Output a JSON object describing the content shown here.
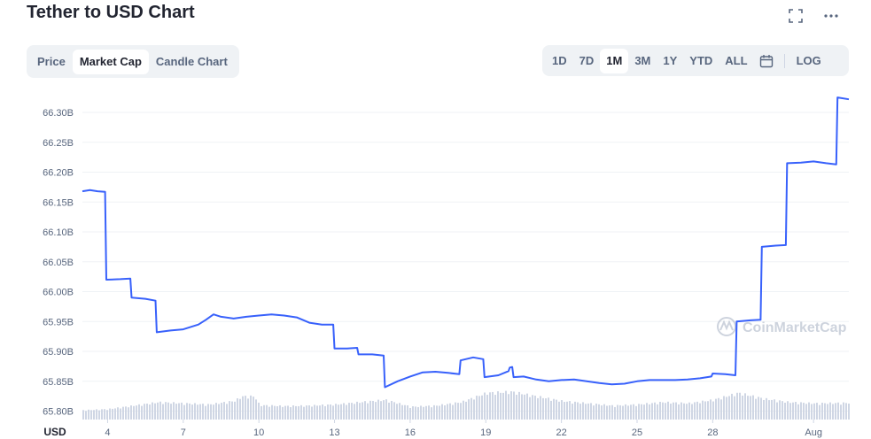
{
  "page": {
    "title": "Tether to USD Chart"
  },
  "icons": {
    "fullscreen": "fullscreen-icon",
    "more": "more-dots-icon",
    "calendar": "calendar-icon"
  },
  "tabs_left": [
    {
      "label": "Price",
      "active": false
    },
    {
      "label": "Market Cap",
      "active": true
    },
    {
      "label": "Candle Chart",
      "active": false
    }
  ],
  "tabs_right": [
    {
      "label": "1D",
      "active": false
    },
    {
      "label": "7D",
      "active": false
    },
    {
      "label": "1M",
      "active": true
    },
    {
      "label": "3M",
      "active": false
    },
    {
      "label": "1Y",
      "active": false
    },
    {
      "label": "YTD",
      "active": false
    },
    {
      "label": "ALL",
      "active": false
    }
  ],
  "log_label": "LOG",
  "watermark": "CoinMarketCap",
  "colors": {
    "line": "#3861fb",
    "volume": "#cfd6e4",
    "grid": "#eff2f5",
    "axis_text": "#58667e"
  },
  "chart_data": {
    "type": "line",
    "title": "Tether to USD Chart",
    "x_currency_label": "USD",
    "y_tick_labels": [
      "66.30B",
      "66.25B",
      "66.20B",
      "66.15B",
      "66.10B",
      "66.05B",
      "66.00B",
      "65.95B",
      "65.90B",
      "65.85B",
      "65.80B"
    ],
    "y_ticks": [
      66.3,
      66.25,
      66.2,
      66.15,
      66.1,
      66.05,
      66.0,
      65.95,
      65.9,
      65.85,
      65.8
    ],
    "ylim": [
      65.786,
      66.34
    ],
    "xlim": [
      3.0,
      33.4
    ],
    "x_ticks": [
      {
        "value": 4,
        "label": "4"
      },
      {
        "value": 7,
        "label": "7"
      },
      {
        "value": 10,
        "label": "10"
      },
      {
        "value": 13,
        "label": "13"
      },
      {
        "value": 16,
        "label": "16"
      },
      {
        "value": 19,
        "label": "19"
      },
      {
        "value": 22,
        "label": "22"
      },
      {
        "value": 25,
        "label": "25"
      },
      {
        "value": 28,
        "label": "28"
      },
      {
        "value": 32,
        "label": "Aug"
      }
    ],
    "grid": true,
    "series": [
      {
        "unit": "B",
        "points": [
          [
            3.0,
            66.168
          ],
          [
            3.3,
            66.17
          ],
          [
            3.6,
            66.168
          ],
          [
            3.9,
            66.167
          ],
          [
            3.95,
            66.02
          ],
          [
            4.5,
            66.021
          ],
          [
            4.9,
            66.022
          ],
          [
            4.95,
            65.99
          ],
          [
            5.5,
            65.988
          ],
          [
            5.9,
            65.985
          ],
          [
            5.95,
            65.932
          ],
          [
            6.5,
            65.935
          ],
          [
            7.0,
            65.937
          ],
          [
            7.6,
            65.945
          ],
          [
            7.9,
            65.953
          ],
          [
            8.2,
            65.962
          ],
          [
            8.5,
            65.958
          ],
          [
            9.0,
            65.955
          ],
          [
            9.5,
            65.958
          ],
          [
            10.0,
            65.96
          ],
          [
            10.5,
            65.962
          ],
          [
            11.0,
            65.96
          ],
          [
            11.5,
            65.957
          ],
          [
            12.0,
            65.948
          ],
          [
            12.5,
            65.945
          ],
          [
            12.95,
            65.945
          ],
          [
            13.0,
            65.905
          ],
          [
            13.5,
            65.905
          ],
          [
            13.9,
            65.906
          ],
          [
            13.95,
            65.895
          ],
          [
            14.5,
            65.895
          ],
          [
            14.95,
            65.893
          ],
          [
            15.0,
            65.84
          ],
          [
            15.5,
            65.85
          ],
          [
            16.0,
            65.858
          ],
          [
            16.5,
            65.865
          ],
          [
            17.0,
            65.866
          ],
          [
            17.5,
            65.864
          ],
          [
            17.95,
            65.862
          ],
          [
            18.0,
            65.885
          ],
          [
            18.5,
            65.89
          ],
          [
            18.9,
            65.887
          ],
          [
            18.95,
            65.857
          ],
          [
            19.5,
            65.86
          ],
          [
            19.9,
            65.867
          ],
          [
            19.95,
            65.873
          ],
          [
            20.05,
            65.874
          ],
          [
            20.1,
            65.857
          ],
          [
            20.5,
            65.858
          ],
          [
            21.0,
            65.853
          ],
          [
            21.5,
            65.85
          ],
          [
            22.0,
            65.852
          ],
          [
            22.5,
            65.853
          ],
          [
            23.0,
            65.85
          ],
          [
            23.5,
            65.847
          ],
          [
            24.0,
            65.845
          ],
          [
            24.5,
            65.846
          ],
          [
            25.0,
            65.85
          ],
          [
            25.5,
            65.852
          ],
          [
            26.0,
            65.852
          ],
          [
            26.5,
            65.852
          ],
          [
            27.0,
            65.853
          ],
          [
            27.5,
            65.855
          ],
          [
            27.95,
            65.858
          ],
          [
            28.0,
            65.863
          ],
          [
            28.5,
            65.862
          ],
          [
            28.9,
            65.86
          ],
          [
            28.95,
            65.95
          ],
          [
            29.5,
            65.952
          ],
          [
            29.9,
            65.953
          ],
          [
            29.95,
            66.075
          ],
          [
            30.5,
            66.077
          ],
          [
            30.9,
            66.078
          ],
          [
            30.95,
            66.215
          ],
          [
            31.5,
            66.216
          ],
          [
            32.0,
            66.218
          ],
          [
            32.5,
            66.215
          ],
          [
            32.9,
            66.213
          ],
          [
            32.95,
            66.325
          ],
          [
            33.4,
            66.322
          ]
        ]
      }
    ],
    "volume_profile": [
      {
        "x": 3.0,
        "h": 0.4
      },
      {
        "x": 4.0,
        "h": 0.45
      },
      {
        "x": 5.0,
        "h": 0.6
      },
      {
        "x": 6.0,
        "h": 0.75
      },
      {
        "x": 7.0,
        "h": 0.7
      },
      {
        "x": 8.0,
        "h": 0.65
      },
      {
        "x": 9.0,
        "h": 0.8
      },
      {
        "x": 9.3,
        "h": 1.0
      },
      {
        "x": 9.8,
        "h": 1.0
      },
      {
        "x": 10.0,
        "h": 0.62
      },
      {
        "x": 11.0,
        "h": 0.58
      },
      {
        "x": 12.0,
        "h": 0.6
      },
      {
        "x": 13.0,
        "h": 0.65
      },
      {
        "x": 14.0,
        "h": 0.75
      },
      {
        "x": 15.0,
        "h": 0.85
      },
      {
        "x": 16.0,
        "h": 0.55
      },
      {
        "x": 17.0,
        "h": 0.6
      },
      {
        "x": 18.0,
        "h": 0.75
      },
      {
        "x": 19.0,
        "h": 1.15
      },
      {
        "x": 20.0,
        "h": 1.2
      },
      {
        "x": 21.0,
        "h": 1.0
      },
      {
        "x": 22.0,
        "h": 0.8
      },
      {
        "x": 23.0,
        "h": 0.7
      },
      {
        "x": 24.0,
        "h": 0.6
      },
      {
        "x": 25.0,
        "h": 0.65
      },
      {
        "x": 26.0,
        "h": 0.75
      },
      {
        "x": 27.0,
        "h": 0.7
      },
      {
        "x": 28.0,
        "h": 0.85
      },
      {
        "x": 29.0,
        "h": 1.15
      },
      {
        "x": 30.0,
        "h": 0.9
      },
      {
        "x": 31.0,
        "h": 0.75
      },
      {
        "x": 32.0,
        "h": 0.7
      },
      {
        "x": 33.4,
        "h": 0.72
      }
    ]
  }
}
